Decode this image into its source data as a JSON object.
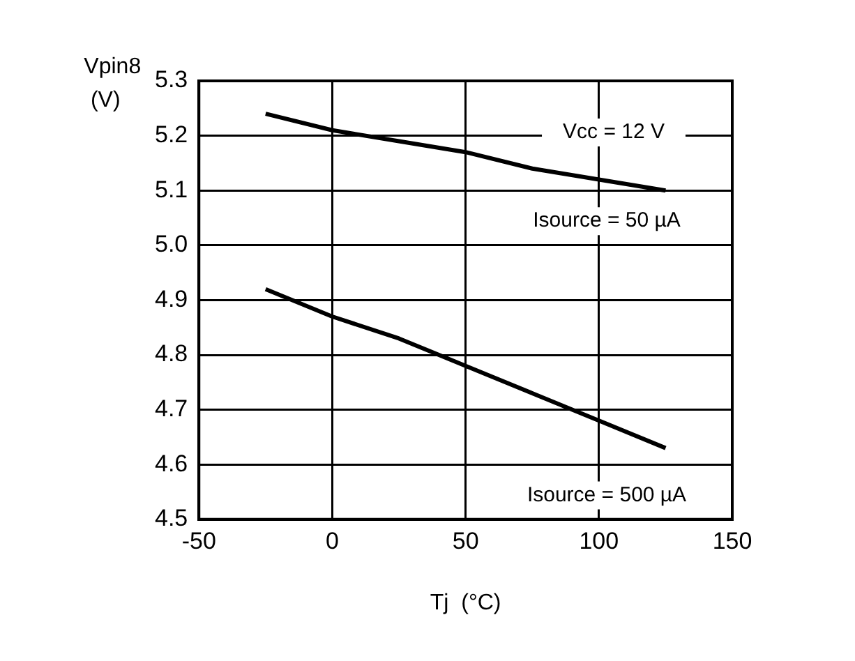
{
  "chart_data": {
    "type": "line",
    "xlabel": "Tj  (°C)",
    "ylabel": "Vpin8\n(V)",
    "annotations": [
      "Vcc = 12 V"
    ],
    "series": [
      {
        "name": "Isource = 50 µA",
        "color": "#000000",
        "x": [
          -25,
          0,
          25,
          50,
          75,
          100,
          125
        ],
        "values": [
          5.24,
          5.21,
          5.19,
          5.17,
          5.14,
          5.12,
          5.1
        ]
      },
      {
        "name": "Isource = 500 µA",
        "color": "#000000",
        "x": [
          -25,
          0,
          25,
          50,
          75,
          100,
          125
        ],
        "values": [
          4.92,
          4.87,
          4.83,
          4.78,
          4.73,
          4.68,
          4.63
        ]
      }
    ],
    "xlim": [
      -50,
      150
    ],
    "xticks": [
      -50,
      0,
      50,
      100,
      150
    ],
    "ylim": [
      4.5,
      5.3
    ],
    "yticks": [
      4.5,
      4.6,
      4.7,
      4.8,
      4.9,
      {
        "value": 5,
        "label": "5.0"
      },
      5.1,
      5.2,
      5.3
    ],
    "grid": true,
    "legend": false,
    "marker": "none",
    "line_style": "solid"
  }
}
